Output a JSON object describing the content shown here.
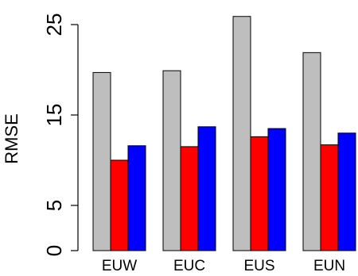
{
  "chart_data": {
    "type": "bar",
    "title": "",
    "xlabel": "",
    "ylabel": "RMSE",
    "ylim": [
      0,
      25
    ],
    "yticks": [
      0,
      5,
      15,
      25
    ],
    "categories": [
      "EUW",
      "EUC",
      "EUS",
      "EUN"
    ],
    "series": [
      {
        "color": "#bebebe",
        "values": [
          19.7,
          19.9,
          25.9,
          21.9
        ]
      },
      {
        "color": "#ff0000",
        "values": [
          10.0,
          11.5,
          12.6,
          11.7
        ]
      },
      {
        "color": "#0000ff",
        "values": [
          11.6,
          13.7,
          13.5,
          13.0
        ]
      }
    ],
    "grid": false,
    "legend": "none"
  }
}
